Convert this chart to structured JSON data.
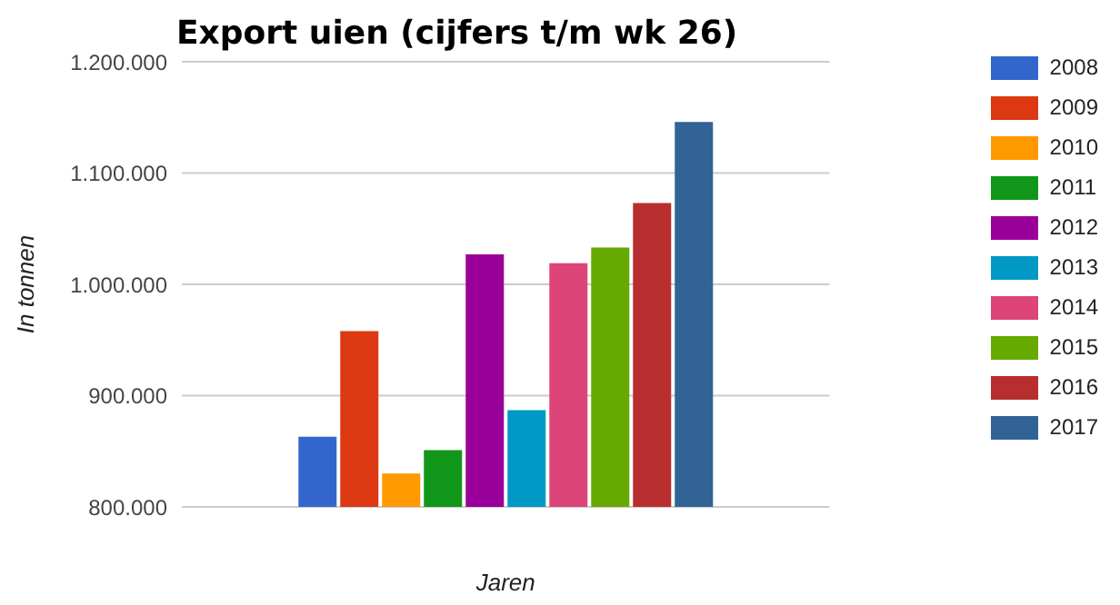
{
  "chart_data": {
    "type": "bar",
    "title": "Export uien (cijfers t/m wk 26)",
    "xlabel": "Jaren",
    "ylabel": "In tonnen",
    "categories": [
      null
    ],
    "series": [
      {
        "name": "2008",
        "color": "#3366cc",
        "values": [
          863000
        ]
      },
      {
        "name": "2009",
        "color": "#dc3912",
        "values": [
          958000
        ]
      },
      {
        "name": "2010",
        "color": "#ff9900",
        "values": [
          830000
        ]
      },
      {
        "name": "2011",
        "color": "#109618",
        "values": [
          851000
        ]
      },
      {
        "name": "2012",
        "color": "#990099",
        "values": [
          1027000
        ]
      },
      {
        "name": "2013",
        "color": "#0099c6",
        "values": [
          887000
        ]
      },
      {
        "name": "2014",
        "color": "#dd4477",
        "values": [
          1019000
        ]
      },
      {
        "name": "2015",
        "color": "#66aa00",
        "values": [
          1033000
        ]
      },
      {
        "name": "2016",
        "color": "#b82e2e",
        "values": [
          1073000
        ]
      },
      {
        "name": "2017",
        "color": "#316395",
        "values": [
          1146000
        ]
      }
    ],
    "ylim": [
      800000,
      1200000
    ],
    "yticks": [
      {
        "value": 800000,
        "label": "800.000"
      },
      {
        "value": 900000,
        "label": "900.000"
      },
      {
        "value": 1000000,
        "label": "1.000.000"
      },
      {
        "value": 1100000,
        "label": "1.100.000"
      },
      {
        "value": 1200000,
        "label": "1.200.000"
      }
    ],
    "grid": "y",
    "legend": "right"
  }
}
